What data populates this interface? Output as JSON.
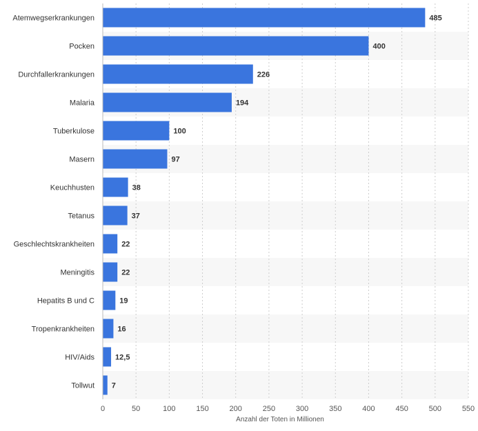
{
  "chart_data": {
    "type": "bar",
    "orientation": "horizontal",
    "categories": [
      "Atemwegserkrankungen",
      "Pocken",
      "Durchfallerkrankungen",
      "Malaria",
      "Tuberkulose",
      "Masern",
      "Keuchhusten",
      "Tetanus",
      "Geschlechtskrankheiten",
      "Meningitis",
      "Hepatits B und C",
      "Tropenkrankheiten",
      "HIV/Aids",
      "Tollwut"
    ],
    "values": [
      485,
      400,
      226,
      194,
      100,
      97,
      38,
      37,
      22,
      22,
      19,
      16,
      12.5,
      7
    ],
    "value_labels": [
      "485",
      "400",
      "226",
      "194",
      "100",
      "97",
      "38",
      "37",
      "22",
      "22",
      "19",
      "16",
      "12,5",
      "7"
    ],
    "xlabel": "Anzahl der Toten in Millionen",
    "xlim": [
      0,
      550
    ],
    "xticks": [
      "0",
      "50",
      "100",
      "150",
      "200",
      "250",
      "300",
      "350",
      "400",
      "450",
      "500",
      "550"
    ],
    "grid": "vertical dashed",
    "bar_color": "#3a75de",
    "alt_row_color": "#f7f7f7"
  }
}
